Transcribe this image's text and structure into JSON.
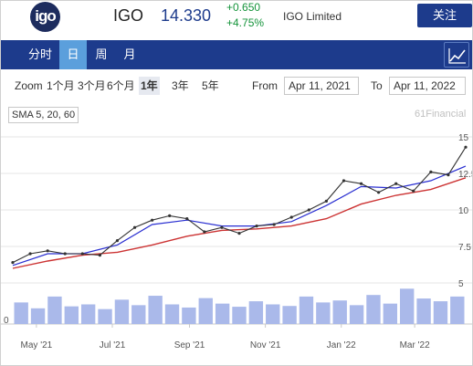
{
  "header": {
    "logo_text": "igo",
    "ticker": "IGO",
    "price": "14.330",
    "change_abs": "+0.650",
    "change_pct": "+4.75%",
    "company": "IGO Limited",
    "follow_label": "关注"
  },
  "tabs": [
    {
      "label": "分时",
      "active": false
    },
    {
      "label": "日",
      "active": true
    },
    {
      "label": "周",
      "active": false
    },
    {
      "label": "月",
      "active": false
    }
  ],
  "controls": {
    "zoom_label": "Zoom",
    "zoom_options": [
      "1个月",
      "3个月",
      "6个月",
      "1年",
      "3年",
      "5年"
    ],
    "zoom_active": "1年",
    "from_label": "From",
    "from_date": "Apr 11, 2021",
    "to_label": "To",
    "to_date": "Apr 11, 2022"
  },
  "indicator_label": "SMA 5, 20, 60",
  "watermark": "61Financial",
  "colors": {
    "accent": "#1d3b8c",
    "active_tab": "#5b9fdc",
    "up": "#14933a",
    "sma20": "#2a2fd1",
    "sma60": "#cc3333",
    "volume": "#aab9ea"
  },
  "chart_data": {
    "type": "line",
    "title": "",
    "ylim": [
      5,
      15
    ],
    "y_ticks": [
      5,
      7.5,
      10,
      12.5,
      15
    ],
    "x_ticks": [
      "May '21",
      "Jul '21",
      "Sep '21",
      "Nov '21",
      "Jan '22",
      "Mar '22"
    ],
    "volume_axis_label": "0",
    "close_series": {
      "name": "",
      "x": [
        "2021-04-12",
        "2021-04-26",
        "2021-05-10",
        "2021-05-24",
        "2021-06-07",
        "2021-06-21",
        "2021-07-05",
        "2021-07-19",
        "2021-08-02",
        "2021-08-16",
        "2021-08-30",
        "2021-09-13",
        "2021-09-27",
        "2021-10-11",
        "2021-10-25",
        "2021-11-08",
        "2021-11-22",
        "2021-12-06",
        "2021-12-20",
        "2022-01-03",
        "2022-01-17",
        "2022-01-31",
        "2022-02-14",
        "2022-02-28",
        "2022-03-14",
        "2022-03-28",
        "2022-04-11"
      ],
      "y": [
        6.4,
        7.0,
        7.2,
        7.0,
        7.0,
        6.9,
        7.9,
        8.8,
        9.3,
        9.6,
        9.4,
        8.5,
        8.8,
        8.4,
        8.9,
        9.0,
        9.5,
        10.0,
        10.6,
        12.0,
        11.8,
        11.2,
        11.8,
        11.3,
        12.6,
        12.4,
        14.3
      ]
    },
    "series": [
      {
        "name": "",
        "x": [
          "2021-04-12",
          "2021-05-10",
          "2021-06-07",
          "2021-07-05",
          "2021-08-02",
          "2021-08-30",
          "2021-09-27",
          "2021-10-25",
          "2021-11-22",
          "2021-12-20",
          "2022-01-17",
          "2022-02-14",
          "2022-03-14",
          "2022-04-11"
        ],
        "y": [
          6.2,
          7.0,
          7.0,
          7.6,
          9.0,
          9.3,
          8.9,
          8.9,
          9.2,
          10.3,
          11.6,
          11.5,
          12.0,
          13.0
        ]
      },
      {
        "name": "",
        "x": [
          "2021-04-12",
          "2021-05-10",
          "2021-06-07",
          "2021-07-05",
          "2021-08-02",
          "2021-08-30",
          "2021-09-27",
          "2021-10-25",
          "2021-11-22",
          "2021-12-20",
          "2022-01-17",
          "2022-02-14",
          "2022-03-14",
          "2022-04-11"
        ],
        "y": [
          6.0,
          6.5,
          6.9,
          7.1,
          7.6,
          8.2,
          8.6,
          8.7,
          8.9,
          9.4,
          10.4,
          11.0,
          11.4,
          12.2
        ]
      }
    ],
    "volume": [
      0.55,
      0.4,
      0.7,
      0.45,
      0.5,
      0.38,
      0.62,
      0.48,
      0.72,
      0.5,
      0.42,
      0.66,
      0.52,
      0.44,
      0.58,
      0.5,
      0.46,
      0.7,
      0.55,
      0.6,
      0.48,
      0.74,
      0.52,
      0.9,
      0.65,
      0.58,
      0.7
    ]
  }
}
